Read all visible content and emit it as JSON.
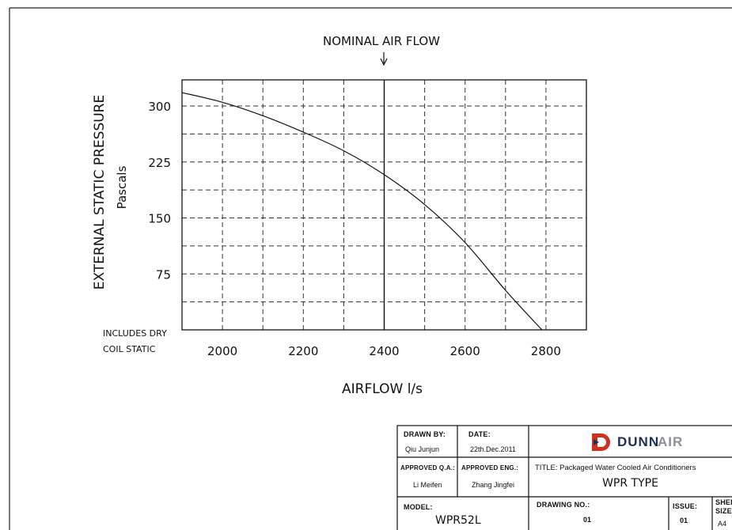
{
  "chart_data": {
    "type": "line",
    "title": "NOMINAL AIR FLOW",
    "xlabel": "AIRFLOW l/s",
    "ylabel": "EXTERNAL STATIC PRESSURE",
    "ylabel_unit": "Pascals",
    "xlim": [
      1900,
      2900
    ],
    "ylim": [
      0,
      335
    ],
    "x_ticks": [
      2000,
      2200,
      2400,
      2600,
      2800
    ],
    "y_ticks": [
      75,
      150,
      225,
      300
    ],
    "grid": true,
    "nominal_airflow": 2400,
    "note_lines": [
      "INCLUDES DRY",
      "COIL STATIC"
    ],
    "series": [
      {
        "x": [
          1900,
          2000,
          2100,
          2200,
          2300,
          2400,
          2500,
          2600,
          2700,
          2790
        ],
        "y": [
          318,
          305,
          287,
          265,
          240,
          208,
          168,
          117,
          53,
          0
        ]
      }
    ]
  },
  "titleblock": {
    "drawn_by_label": "DRAWN BY:",
    "drawn_by": "Qiu Junjun",
    "date_label": "DATE:",
    "date": "22th.Dec.2011",
    "approved_qa_label": "APPROVED Q.A.:",
    "approved_qa": "Li Meifen",
    "approved_eng_label": "APPROVED ENG.:",
    "approved_eng": "Zhang Jingfei",
    "title_line": "TITLE:  Packaged Water Cooled Air Conditioners",
    "title_main": "WPR TYPE",
    "model_label": "MODEL:",
    "model": "WPR52L",
    "drawing_no_label": "DRAWING NO.:",
    "drawing_no": "01",
    "issue_label": "ISSUE:",
    "issue": "01",
    "sheet_label": "SHEET",
    "size_label": "SIZE",
    "size": "A4",
    "logo_dunn": "DUNN",
    "logo_air": "AIR",
    "logo_color_red": "#d0311e",
    "logo_color_navy": "#1f2d5c"
  }
}
